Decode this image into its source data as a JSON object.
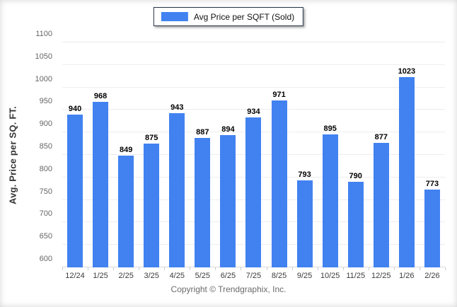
{
  "chart_data": {
    "type": "bar",
    "title": "",
    "legend": [
      "Avg Price per SQFT (Sold)"
    ],
    "legend_position": "top-center",
    "categories": [
      "12/24",
      "1/25",
      "2/25",
      "3/25",
      "4/25",
      "5/25",
      "6/25",
      "7/25",
      "8/25",
      "9/25",
      "10/25",
      "11/25",
      "12/25",
      "1/26",
      "2/26"
    ],
    "values": [
      940,
      968,
      849,
      875,
      943,
      887,
      894,
      934,
      971,
      793,
      895,
      790,
      877,
      1023,
      773
    ],
    "xlabel": "",
    "ylabel": "Avg. Price per SQ. FT.",
    "ylim": [
      600,
      1100
    ],
    "ytick_step": 50,
    "grid": true,
    "bar_color": "#4182F0",
    "value_label_color": "#000000",
    "axis_text_color": "#666666"
  },
  "footer": {
    "copyright": "Copyright © Trendgraphix, Inc."
  }
}
